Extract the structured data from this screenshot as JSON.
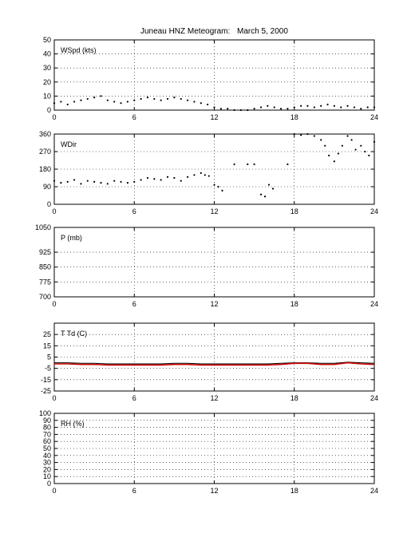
{
  "title": "Juneau HNZ Meteogram:",
  "date": "March  5, 2000",
  "x_tick_labels": [
    "0",
    "6",
    "12",
    "18",
    "24"
  ],
  "chart_data": [
    {
      "type": "scatter",
      "label": "WSpd (kts)",
      "xlim": [
        0,
        24
      ],
      "ylim": [
        0,
        50
      ],
      "xticks": [
        0,
        6,
        12,
        18,
        24
      ],
      "yticks": [
        0,
        10,
        20,
        30,
        40,
        50
      ],
      "grid": "dotted",
      "series": [
        {
          "color": "#000000",
          "x": [
            0,
            0.5,
            1,
            1.5,
            2,
            2.5,
            3,
            3.5,
            4,
            4.5,
            5,
            5.5,
            6,
            6.5,
            7,
            7.5,
            8,
            8.5,
            9,
            9.5,
            10,
            10.5,
            11,
            11.5,
            12,
            12.5,
            13,
            13.5,
            14,
            14.5,
            15,
            15.5,
            16,
            16.5,
            17,
            17.5,
            18,
            18.5,
            19,
            19.5,
            20,
            20.5,
            21,
            21.5,
            22,
            22.5,
            23,
            23.5,
            24
          ],
          "y": [
            5,
            6,
            4,
            6,
            7,
            8,
            9,
            10,
            7,
            6,
            5,
            6,
            7,
            8,
            9,
            8,
            7,
            8,
            9,
            8,
            7,
            6,
            5,
            4,
            2,
            1,
            1,
            0,
            0,
            0,
            1,
            2,
            3,
            2,
            1,
            1,
            2,
            3,
            3,
            2,
            3,
            4,
            3,
            2,
            3,
            2,
            1,
            2,
            2
          ]
        }
      ]
    },
    {
      "type": "scatter",
      "label": "WDir",
      "xlim": [
        0,
        24
      ],
      "ylim": [
        0,
        360
      ],
      "xticks": [
        0,
        6,
        12,
        18,
        24
      ],
      "yticks": [
        0,
        90,
        180,
        270,
        360
      ],
      "grid": "dotted",
      "series": [
        {
          "color": "#000000",
          "x": [
            0,
            0.5,
            1,
            1.5,
            2,
            2.5,
            3,
            3.5,
            4,
            4.5,
            5,
            5.5,
            6,
            6.5,
            7,
            7.5,
            8,
            8.5,
            9,
            9.5,
            10,
            10.5,
            11,
            11.3,
            11.6,
            12,
            12.3,
            12.6,
            13.5,
            14.5,
            15,
            15.5,
            15.8,
            16.1,
            16.4,
            17.5,
            18,
            18.5,
            19,
            19.5,
            20,
            20.3,
            20.6,
            21,
            21.3,
            21.6,
            22,
            22.3,
            22.6,
            23,
            23.3,
            23.6,
            24
          ],
          "y": [
            120,
            110,
            115,
            125,
            105,
            120,
            115,
            110,
            105,
            120,
            115,
            110,
            115,
            125,
            135,
            130,
            125,
            140,
            135,
            120,
            140,
            150,
            160,
            150,
            145,
            100,
            90,
            70,
            205,
            205,
            205,
            50,
            40,
            100,
            80,
            205,
            360,
            355,
            360,
            350,
            330,
            300,
            250,
            220,
            260,
            300,
            350,
            330,
            280,
            300,
            270,
            250,
            320
          ]
        }
      ]
    },
    {
      "type": "line",
      "label": "P (mb)",
      "xlim": [
        0,
        24
      ],
      "ylim": [
        700,
        1050
      ],
      "xticks": [
        0,
        6,
        12,
        18,
        24
      ],
      "yticks": [
        700,
        775,
        850,
        925,
        1050
      ],
      "grid": "dotted",
      "series": []
    },
    {
      "type": "line",
      "label": "T Td (C)",
      "xlim": [
        0,
        24
      ],
      "ylim": [
        -25,
        35
      ],
      "xticks": [
        0,
        6,
        12,
        18,
        24
      ],
      "yticks": [
        -25,
        -15,
        -5,
        5,
        15,
        25
      ],
      "grid": "dotted",
      "series": [
        {
          "color": "#000000",
          "x": [
            0,
            1,
            2,
            3,
            4,
            5,
            6,
            7,
            8,
            9,
            10,
            11,
            12,
            13,
            14,
            15,
            16,
            17,
            18,
            19,
            20,
            21,
            22,
            23,
            24
          ],
          "y": [
            0,
            0,
            -0.5,
            -0.5,
            -1,
            -1,
            -1,
            -1,
            -1,
            -0.5,
            -0.5,
            -1,
            -1,
            -1,
            -1,
            -1,
            -1,
            -0.5,
            0,
            0,
            -0.5,
            -0.5,
            0.5,
            0,
            -0.5
          ]
        },
        {
          "color": "#cc0000",
          "x": [
            0,
            1,
            2,
            3,
            4,
            5,
            6,
            7,
            8,
            9,
            10,
            11,
            12,
            13,
            14,
            15,
            16,
            17,
            18,
            19,
            20,
            21,
            22,
            23,
            24
          ],
          "y": [
            -1,
            -1,
            -1.5,
            -1.5,
            -2,
            -2,
            -2,
            -2,
            -2,
            -1.5,
            -1.5,
            -2,
            -2,
            -2,
            -2,
            -2,
            -2,
            -1.5,
            -0.5,
            -0.5,
            -1.5,
            -1.5,
            0,
            -1,
            -1.5
          ]
        }
      ]
    },
    {
      "type": "line",
      "label": "RH (%)",
      "xlim": [
        0,
        24
      ],
      "ylim": [
        0,
        100
      ],
      "xticks": [
        0,
        6,
        12,
        18,
        24
      ],
      "yticks": [
        0,
        10,
        20,
        30,
        40,
        50,
        60,
        70,
        80,
        90,
        100
      ],
      "grid": "dotted",
      "series": []
    }
  ]
}
